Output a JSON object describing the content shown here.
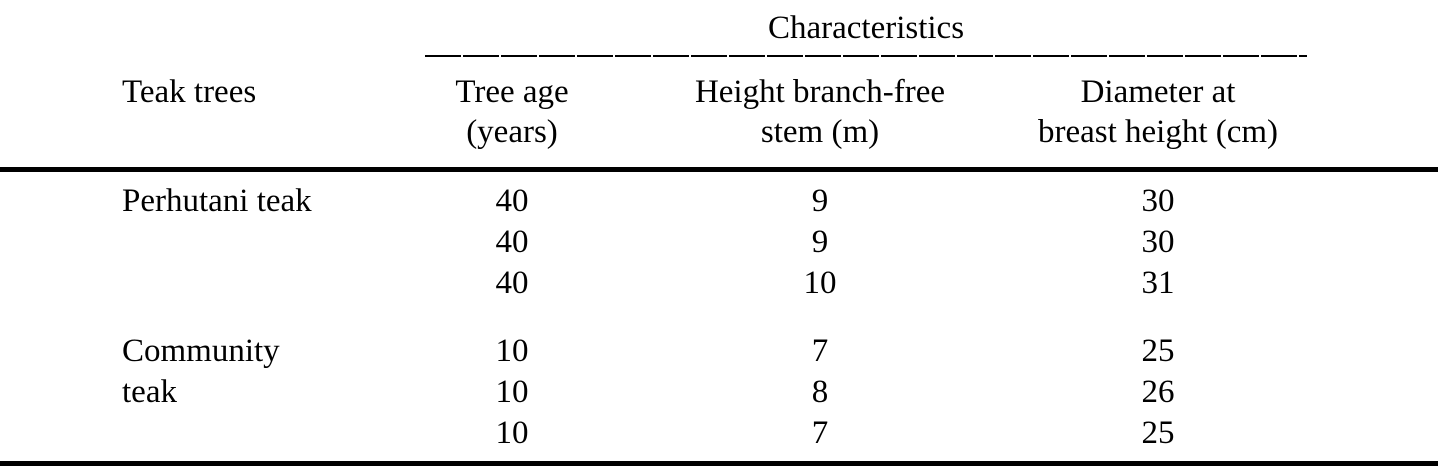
{
  "table": {
    "stub_header": "Teak trees",
    "spanner": "Characteristics",
    "columns": [
      {
        "line1": "Tree age",
        "line2": "(years)"
      },
      {
        "line1": "Height branch-free",
        "line2": "stem (m)"
      },
      {
        "line1": "Diameter at",
        "line2": "breast height (cm)"
      }
    ],
    "groups": [
      {
        "label": "Perhutani teak",
        "rows": [
          [
            "40",
            "9",
            "30"
          ],
          [
            "40",
            "9",
            "30"
          ],
          [
            "40",
            "10",
            "31"
          ]
        ]
      },
      {
        "label": "Community teak",
        "rows": [
          [
            "10",
            "7",
            "25"
          ],
          [
            "10",
            "8",
            "26"
          ],
          [
            "10",
            "7",
            "25"
          ]
        ]
      }
    ]
  },
  "colors": {
    "text": "#000000",
    "background": "#ffffff",
    "rule": "#000000"
  },
  "chart_data": {
    "type": "table",
    "title": "Characteristics",
    "columns": [
      "Teak trees",
      "Tree age (years)",
      "Height branch-free stem (m)",
      "Diameter at breast height (cm)"
    ],
    "rows": [
      [
        "Perhutani teak",
        40,
        9,
        30
      ],
      [
        "",
        40,
        9,
        30
      ],
      [
        "",
        40,
        10,
        31
      ],
      [
        "Community teak",
        10,
        7,
        25
      ],
      [
        "",
        10,
        8,
        26
      ],
      [
        "",
        10,
        7,
        25
      ]
    ]
  }
}
